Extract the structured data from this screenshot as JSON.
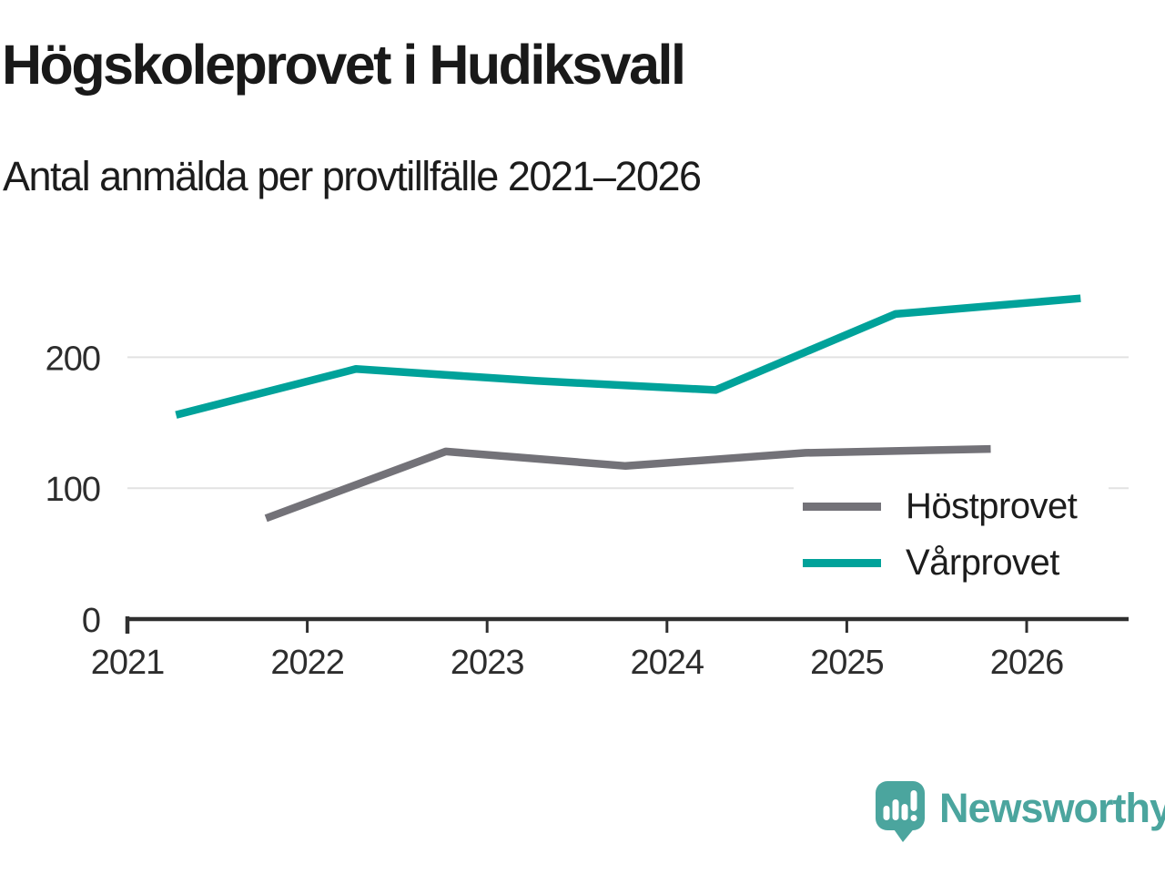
{
  "header": {
    "title": "Högskoleprovet i Hudiksvall",
    "subtitle": "Antal anmälda per provtillfälle 2021–2026"
  },
  "chart_data": {
    "type": "line",
    "title": "Högskoleprovet i Hudiksvall",
    "subtitle": "Antal anmälda per provtillfälle 2021–2026",
    "xlabel": "",
    "ylabel": "",
    "x_ticks": [
      2021,
      2022,
      2023,
      2024,
      2025,
      2026
    ],
    "y_ticks": [
      0,
      100,
      200
    ],
    "xlim": [
      2021,
      2026.55
    ],
    "ylim": [
      0,
      260
    ],
    "grid": "horizontal-only",
    "legend_position": "inside-right",
    "series": [
      {
        "name": "Höstprovet",
        "color": "#737278",
        "x": [
          2021.77,
          2022.77,
          2023.77,
          2024.77,
          2025.8
        ],
        "values": [
          77,
          128,
          117,
          127,
          130
        ]
      },
      {
        "name": "Vårprovet",
        "color": "#00a29a",
        "x": [
          2021.27,
          2022.27,
          2023.27,
          2024.27,
          2025.27,
          2026.3
        ],
        "values": [
          156,
          191,
          182,
          175,
          233,
          245
        ]
      }
    ],
    "colors": {
      "gridline": "#e2e2e2",
      "axis": "#2f2f2f",
      "tick_label": "#2d2d2d"
    }
  },
  "footer": {
    "brand": "Newsworthy",
    "brand_color": "#4ba59e"
  }
}
